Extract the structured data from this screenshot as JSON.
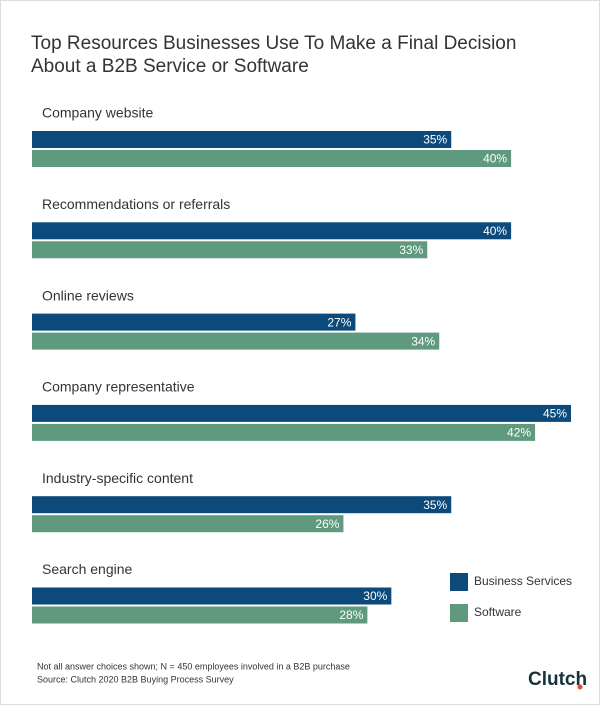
{
  "chart_data": {
    "type": "hbar",
    "title": "Top Resources Businesses Use To Make a Final Decision About a B2B Service or Software",
    "categories": [
      "Company website",
      "Recommendations or referrals",
      "Online reviews",
      "Company representative",
      "Industry-specific content",
      "Search engine"
    ],
    "series": [
      {
        "name": "Business Services",
        "color": "#0b4a7a",
        "values": [
          35,
          40,
          27,
          45,
          35,
          30
        ],
        "value_labels": [
          "35%",
          "40%",
          "27%",
          "45%",
          "35%",
          "30%"
        ]
      },
      {
        "name": "Software",
        "color": "#5f9a7e",
        "values": [
          40,
          33,
          34,
          42,
          26,
          28
        ],
        "value_labels": [
          "40%",
          "33%",
          "34%",
          "42%",
          "26%",
          "28%"
        ]
      }
    ],
    "legend": "bottom-right",
    "notes": [
      "Not all answer choices shown; N = 450 employees involved in a B2B purchase",
      "Source: Clutch 2020 B2B Buying Process Survey"
    ],
    "logo": "Clutch"
  }
}
